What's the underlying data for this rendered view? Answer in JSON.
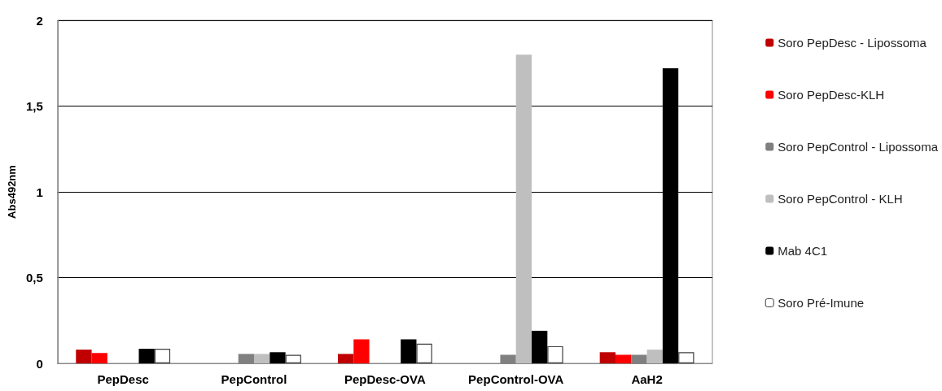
{
  "chart_data": {
    "type": "bar",
    "ylabel": "Abs492nm",
    "categories": [
      "PepDesc",
      "PepControl",
      "PepDesc-OVA",
      "PepControl-OVA",
      "AaH2"
    ],
    "series": [
      {
        "name": "Soro PepDesc - Lipossoma",
        "color": "#c00000",
        "values": [
          0.08,
          null,
          0.055,
          null,
          0.065
        ]
      },
      {
        "name": "Soro PepDesc-KLH",
        "color": "#ff0000",
        "values": [
          0.06,
          null,
          0.14,
          null,
          0.05
        ]
      },
      {
        "name": "Soro PepControl - Lipossoma",
        "color": "#808080",
        "values": [
          null,
          0.055,
          null,
          0.05,
          0.05
        ]
      },
      {
        "name": "Soro PepControl - KLH",
        "color": "#bfbfbf",
        "values": [
          null,
          0.055,
          null,
          1.8,
          0.08
        ]
      },
      {
        "name": "Mab 4C1",
        "color": "#000000",
        "values": [
          0.085,
          0.065,
          0.14,
          0.19,
          1.72
        ]
      },
      {
        "name": "Soro Pré-Imune",
        "color": "#ffffff",
        "values": [
          0.085,
          0.05,
          0.115,
          0.1,
          0.065
        ]
      }
    ],
    "ylim": [
      0,
      2
    ],
    "yticks": [
      0,
      {
        "value": 0.5,
        "label": "0,5"
      },
      1,
      {
        "value": 1.5,
        "label": "1,5"
      },
      2
    ],
    "grid": "y",
    "legend": "right"
  }
}
